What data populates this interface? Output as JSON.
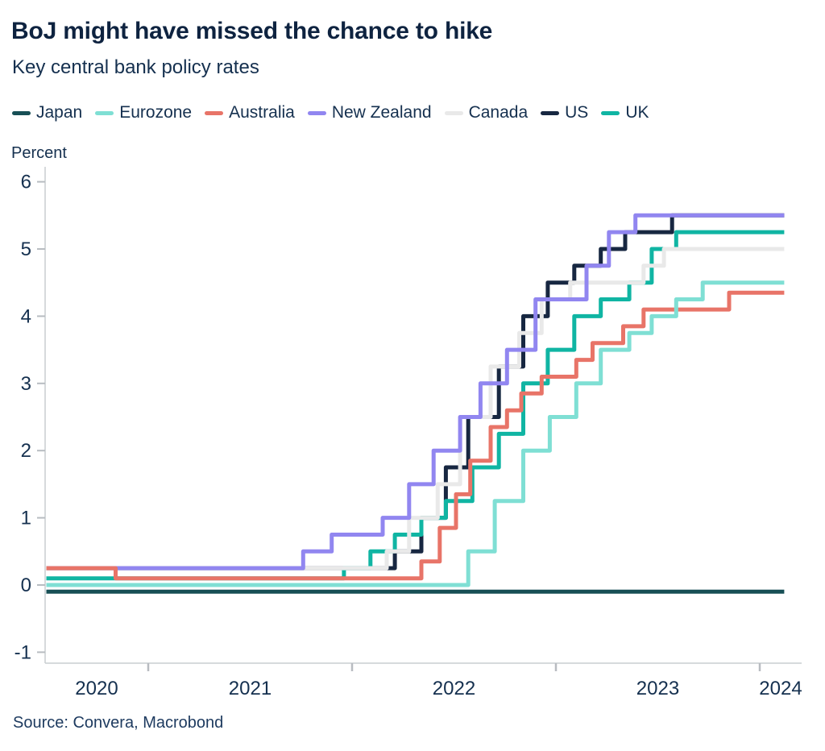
{
  "header": {
    "title": "BoJ might have missed the chance to hike",
    "subtitle": "Key central bank policy rates"
  },
  "unit_label": "Percent",
  "source_text": "Source: Convera, Macrobond",
  "colors": {
    "heading_text": "#0e2340",
    "body_text": "#15304f",
    "axis_line": "#c9cdd1",
    "tick_mark": "#b8bcc1"
  },
  "chart_data": {
    "type": "line",
    "title": "BoJ might have missed the chance to hike",
    "subtitle": "Key central bank policy rates",
    "ylabel": "Percent",
    "grid": false,
    "legend_position": "top",
    "x_range": [
      2020.5,
      2024.12
    ],
    "x_axis_end": 2024.2,
    "y_axis_ticks": [
      -1,
      0,
      1,
      2,
      3,
      4,
      5,
      6
    ],
    "y_range": [
      -1.16,
      6.22
    ],
    "x_boundary_ticks": [
      2021,
      2022,
      2023,
      2024
    ],
    "x_year_labels": [
      2020,
      2021,
      2022,
      2023,
      2024
    ],
    "draw_order": [
      "Japan",
      "US",
      "UK",
      "Canada",
      "New Zealand",
      "Australia",
      "Eurozone"
    ],
    "series": [
      {
        "name": "Japan",
        "color": "#174f55",
        "steps": [
          [
            2020.5,
            -0.1
          ]
        ]
      },
      {
        "name": "Eurozone",
        "color": "#7fdfd4",
        "steps": [
          [
            2020.5,
            0.0
          ],
          [
            2022.57,
            0.5
          ],
          [
            2022.7,
            1.25
          ],
          [
            2022.84,
            2.0
          ],
          [
            2022.97,
            2.5
          ],
          [
            2023.1,
            3.0
          ],
          [
            2023.22,
            3.5
          ],
          [
            2023.36,
            3.75
          ],
          [
            2023.47,
            4.0
          ],
          [
            2023.59,
            4.25
          ],
          [
            2023.72,
            4.5
          ]
        ]
      },
      {
        "name": "Australia",
        "color": "#e87468",
        "steps": [
          [
            2020.5,
            0.25
          ],
          [
            2020.84,
            0.1
          ],
          [
            2022.34,
            0.35
          ],
          [
            2022.43,
            0.85
          ],
          [
            2022.51,
            1.35
          ],
          [
            2022.58,
            1.85
          ],
          [
            2022.68,
            2.35
          ],
          [
            2022.76,
            2.6
          ],
          [
            2022.83,
            2.85
          ],
          [
            2022.93,
            3.1
          ],
          [
            2023.1,
            3.35
          ],
          [
            2023.18,
            3.6
          ],
          [
            2023.33,
            3.85
          ],
          [
            2023.43,
            4.1
          ],
          [
            2023.85,
            4.35
          ]
        ]
      },
      {
        "name": "New Zealand",
        "color": "#9186f0",
        "steps": [
          [
            2020.5,
            0.25
          ],
          [
            2021.76,
            0.5
          ],
          [
            2021.9,
            0.75
          ],
          [
            2022.15,
            1.0
          ],
          [
            2022.28,
            1.5
          ],
          [
            2022.4,
            2.0
          ],
          [
            2022.53,
            2.5
          ],
          [
            2022.63,
            3.0
          ],
          [
            2022.76,
            3.5
          ],
          [
            2022.9,
            4.25
          ],
          [
            2023.15,
            4.75
          ],
          [
            2023.26,
            5.25
          ],
          [
            2023.39,
            5.5
          ]
        ]
      },
      {
        "name": "Canada",
        "color": "#e9e9e9",
        "steps": [
          [
            2020.5,
            0.25
          ],
          [
            2022.17,
            0.5
          ],
          [
            2022.28,
            1.0
          ],
          [
            2022.42,
            1.5
          ],
          [
            2022.53,
            2.5
          ],
          [
            2022.68,
            3.25
          ],
          [
            2022.82,
            3.75
          ],
          [
            2022.93,
            4.25
          ],
          [
            2023.07,
            4.5
          ],
          [
            2023.43,
            4.75
          ],
          [
            2023.53,
            5.0
          ]
        ]
      },
      {
        "name": "US",
        "color": "#172741",
        "steps": [
          [
            2020.5,
            0.25
          ],
          [
            2022.21,
            0.5
          ],
          [
            2022.34,
            1.0
          ],
          [
            2022.46,
            1.75
          ],
          [
            2022.57,
            2.5
          ],
          [
            2022.72,
            3.25
          ],
          [
            2022.84,
            4.0
          ],
          [
            2022.96,
            4.5
          ],
          [
            2023.09,
            4.75
          ],
          [
            2023.22,
            5.0
          ],
          [
            2023.34,
            5.25
          ],
          [
            2023.57,
            5.5
          ]
        ]
      },
      {
        "name": "UK",
        "color": "#10b5a3",
        "steps": [
          [
            2020.5,
            0.1
          ],
          [
            2021.96,
            0.25
          ],
          [
            2022.09,
            0.5
          ],
          [
            2022.21,
            0.75
          ],
          [
            2022.34,
            1.0
          ],
          [
            2022.46,
            1.25
          ],
          [
            2022.59,
            1.75
          ],
          [
            2022.72,
            2.25
          ],
          [
            2022.84,
            3.0
          ],
          [
            2022.96,
            3.5
          ],
          [
            2023.09,
            4.0
          ],
          [
            2023.22,
            4.25
          ],
          [
            2023.36,
            4.5
          ],
          [
            2023.47,
            5.0
          ],
          [
            2023.59,
            5.25
          ]
        ]
      }
    ]
  }
}
